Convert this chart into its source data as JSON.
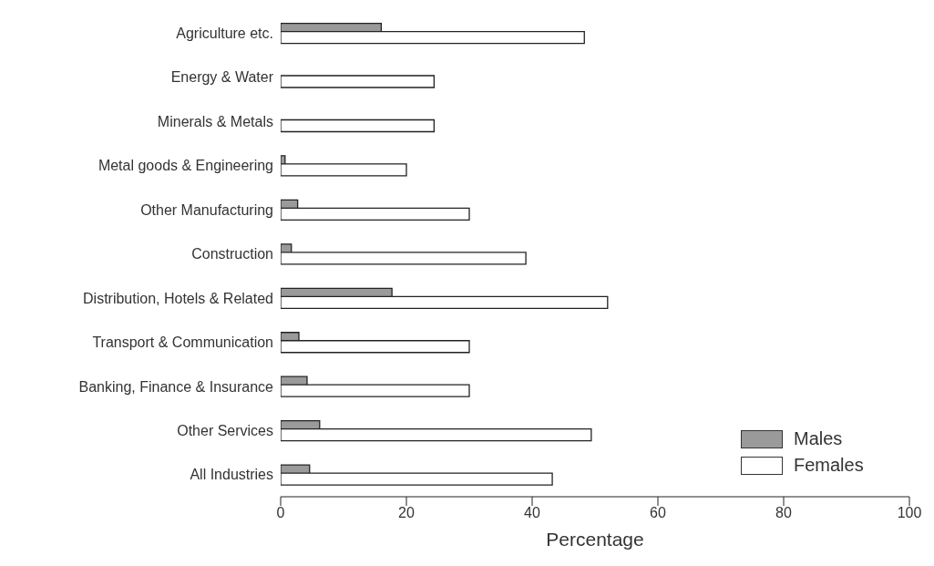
{
  "chart_data": {
    "type": "bar",
    "orientation": "horizontal",
    "xlabel": "Percentage",
    "categories": [
      "Agriculture etc.",
      "Energy & Water",
      "Minerals & Metals",
      "Metal goods & Engineering",
      "Other Manufacturing",
      "Construction",
      "Distribution, Hotels & Related",
      "Transport & Communication",
      "Banking, Finance & Insurance",
      "Other Services",
      "All Industries"
    ],
    "series": [
      {
        "name": "Males",
        "color": "#9a9a9a",
        "values": [
          16,
          0,
          0,
          0.7,
          2.7,
          1.7,
          17.7,
          2.9,
          4.2,
          6.2,
          4.6
        ]
      },
      {
        "name": "Females",
        "color": "#ffffff",
        "values": [
          48.3,
          24.4,
          24.4,
          20,
          30,
          39,
          52,
          30,
          30,
          49.4,
          43.2
        ]
      }
    ],
    "xlim": [
      0,
      100
    ],
    "xticks": [
      0,
      20,
      40,
      60,
      80,
      100
    ],
    "grid": false,
    "legend": "bottom right"
  }
}
